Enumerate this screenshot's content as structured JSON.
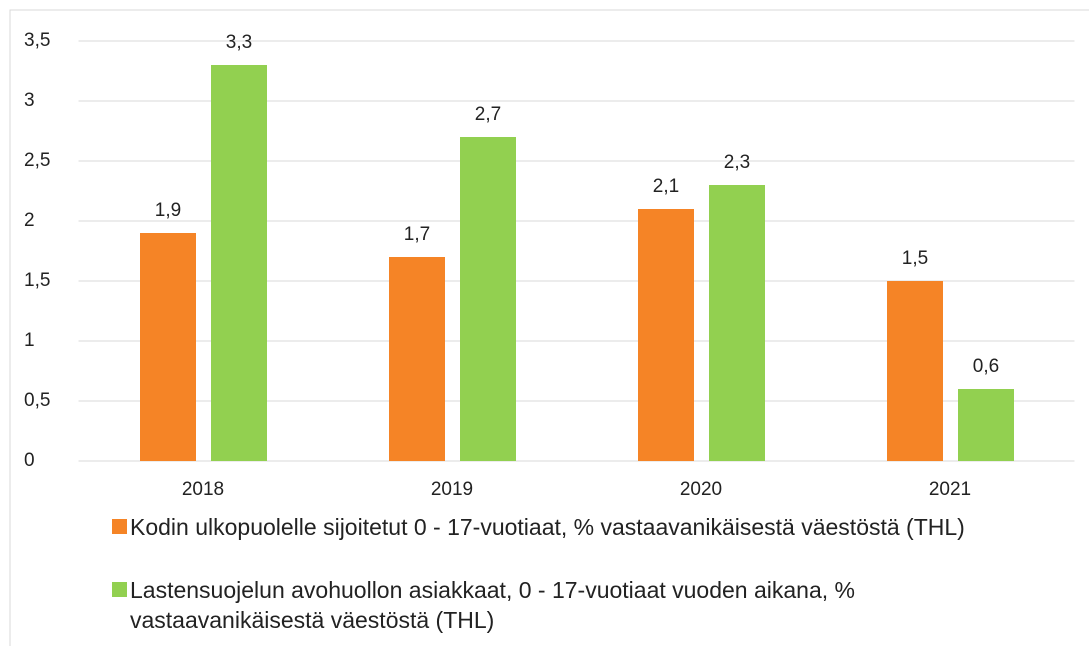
{
  "chart_data": {
    "type": "bar",
    "categories": [
      "2018",
      "2019",
      "2020",
      "2021"
    ],
    "series": [
      {
        "name": "Kodin ulkopuolelle sijoitetut 0 - 17-vuotiaat, % vastaavanikäisestä väestöstä (THL)",
        "color": "#f58426",
        "values": [
          1.9,
          1.7,
          2.1,
          1.5
        ],
        "value_labels": [
          "1,9",
          "1,7",
          "2,1",
          "1,5"
        ]
      },
      {
        "name": "Lastensuojelun avohuollon asiakkaat, 0 - 17-vuotiaat vuoden aikana, % vastaavanikäisestä väestöstä (THL)",
        "color": "#92d050",
        "values": [
          3.3,
          2.7,
          2.3,
          0.6
        ],
        "value_labels": [
          "3,3",
          "2,7",
          "2,3",
          "0,6"
        ]
      }
    ],
    "ylim": [
      0,
      3.5
    ],
    "yticks": [
      0,
      {
        "value": 0.5,
        "label": "0,5"
      },
      1,
      {
        "value": 1.5,
        "label": "1,5"
      },
      2,
      {
        "value": 2.5,
        "label": "2,5"
      },
      3,
      {
        "value": 3.5,
        "label": "3,5"
      }
    ],
    "grid": true
  }
}
